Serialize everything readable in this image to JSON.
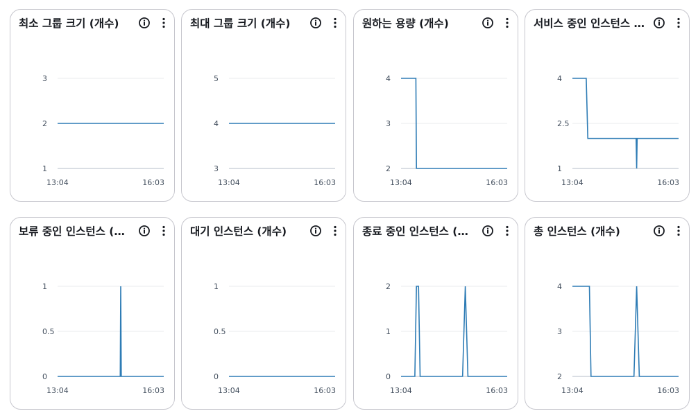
{
  "colors": {
    "series": "#2e7cb5",
    "grid": "#e9ebed",
    "baseline": "#b6bec9",
    "text": "#414d5c"
  },
  "icons": {
    "info": "info-icon",
    "more": "more-vertical-icon"
  },
  "chart_data": [
    {
      "type": "line",
      "title": "최소 그룹 크기 (개수)",
      "x_tick_labels": [
        "13:04",
        "16:03"
      ],
      "y_ticks": [
        1,
        2,
        3
      ],
      "y_tick_labels": [
        "1",
        "2",
        "3"
      ],
      "ylim": [
        1,
        3
      ],
      "series": [
        {
          "points": [
            [
              0,
              2
            ],
            [
              1,
              2
            ]
          ]
        }
      ]
    },
    {
      "type": "line",
      "title": "최대 그룹 크기 (개수)",
      "x_tick_labels": [
        "13:04",
        "16:03"
      ],
      "y_ticks": [
        3,
        4,
        5
      ],
      "y_tick_labels": [
        "3",
        "4",
        "5"
      ],
      "ylim": [
        3,
        5
      ],
      "series": [
        {
          "points": [
            [
              0,
              4
            ],
            [
              1,
              4
            ]
          ]
        }
      ]
    },
    {
      "type": "line",
      "title": "원하는 용량 (개수)",
      "x_tick_labels": [
        "13:04",
        "16:03"
      ],
      "y_ticks": [
        2,
        3,
        4
      ],
      "y_tick_labels": [
        "2",
        "3",
        "4"
      ],
      "ylim": [
        2,
        4
      ],
      "series": [
        {
          "points": [
            [
              0,
              4
            ],
            [
              0.14,
              4
            ],
            [
              0.145,
              2
            ],
            [
              1,
              2
            ]
          ]
        }
      ]
    },
    {
      "type": "line",
      "title": "서비스 중인 인스턴스 …",
      "x_tick_labels": [
        "13:04",
        "16:03"
      ],
      "y_ticks": [
        1,
        2.5,
        4
      ],
      "y_tick_labels": [
        "1",
        "2.5",
        "4"
      ],
      "ylim": [
        1,
        4
      ],
      "series": [
        {
          "points": [
            [
              0,
              4
            ],
            [
              0.13,
              4
            ],
            [
              0.145,
              2
            ],
            [
              0.6,
              2
            ],
            [
              0.605,
              1
            ],
            [
              0.61,
              2
            ],
            [
              1,
              2
            ]
          ]
        }
      ]
    },
    {
      "type": "line",
      "title": "보류 중인 인스턴스 (…",
      "x_tick_labels": [
        "13:04",
        "16:03"
      ],
      "y_ticks": [
        0,
        0.5,
        1
      ],
      "y_tick_labels": [
        "0",
        "0.5",
        "1"
      ],
      "ylim": [
        0,
        1
      ],
      "series": [
        {
          "points": [
            [
              0,
              0
            ],
            [
              0.59,
              0
            ],
            [
              0.595,
              1
            ],
            [
              0.6,
              0
            ],
            [
              1,
              0
            ]
          ]
        }
      ]
    },
    {
      "type": "line",
      "title": "대기 인스턴스 (개수)",
      "x_tick_labels": [
        "13:04",
        "16:03"
      ],
      "y_ticks": [
        0,
        0.5,
        1
      ],
      "y_tick_labels": [
        "0",
        "0.5",
        "1"
      ],
      "ylim": [
        0,
        1
      ],
      "series": [
        {
          "points": [
            [
              0,
              0
            ],
            [
              1,
              0
            ]
          ]
        }
      ]
    },
    {
      "type": "line",
      "title": "종료 중인 인스턴스 (…",
      "x_tick_labels": [
        "13:04",
        "16:03"
      ],
      "y_ticks": [
        0,
        1,
        2
      ],
      "y_tick_labels": [
        "0",
        "1",
        "2"
      ],
      "ylim": [
        0,
        2
      ],
      "series": [
        {
          "points": [
            [
              0,
              0
            ],
            [
              0.13,
              0
            ],
            [
              0.145,
              2
            ],
            [
              0.165,
              2
            ],
            [
              0.18,
              0
            ],
            [
              0.58,
              0
            ],
            [
              0.605,
              2
            ],
            [
              0.63,
              0
            ],
            [
              1,
              0
            ]
          ]
        }
      ]
    },
    {
      "type": "line",
      "title": "총 인스턴스 (개수)",
      "x_tick_labels": [
        "13:04",
        "16:03"
      ],
      "y_ticks": [
        2,
        3,
        4
      ],
      "y_tick_labels": [
        "2",
        "3",
        "4"
      ],
      "ylim": [
        2,
        4
      ],
      "series": [
        {
          "points": [
            [
              0,
              4
            ],
            [
              0.16,
              4
            ],
            [
              0.175,
              2
            ],
            [
              0.58,
              2
            ],
            [
              0.605,
              4
            ],
            [
              0.63,
              2
            ],
            [
              1,
              2
            ]
          ]
        }
      ]
    }
  ]
}
